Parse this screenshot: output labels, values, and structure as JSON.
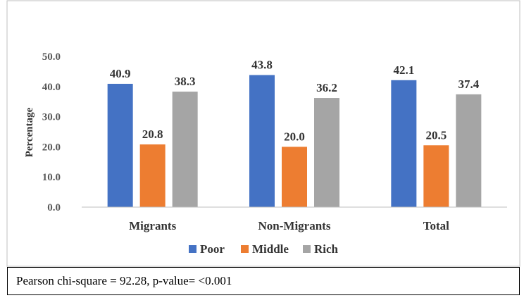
{
  "chart_data": {
    "type": "bar",
    "title": "",
    "xlabel": "",
    "ylabel": "Percentage",
    "ylim": [
      0,
      50
    ],
    "yticks": [
      "0.0",
      "10.0",
      "20.0",
      "30.0",
      "40.0",
      "50.0"
    ],
    "categories": [
      "Migrants",
      "Non-Migrants",
      "Total"
    ],
    "series": [
      {
        "name": "Poor",
        "color": "#4472C4",
        "values": [
          40.9,
          43.8,
          42.1
        ],
        "labels": [
          "40.9",
          "43.8",
          "42.1"
        ]
      },
      {
        "name": "Middle",
        "color": "#ED7D31",
        "values": [
          20.8,
          20.0,
          20.5
        ],
        "labels": [
          "20.8",
          "20.0",
          "20.5"
        ]
      },
      {
        "name": "Rich",
        "color": "#A5A5A5",
        "values": [
          38.3,
          36.2,
          37.4
        ],
        "labels": [
          "38.3",
          "36.2",
          "37.4"
        ]
      }
    ],
    "legend_position": "bottom",
    "grid": false
  },
  "note": "Pearson chi-square = 92.28, p-value= <0.001"
}
